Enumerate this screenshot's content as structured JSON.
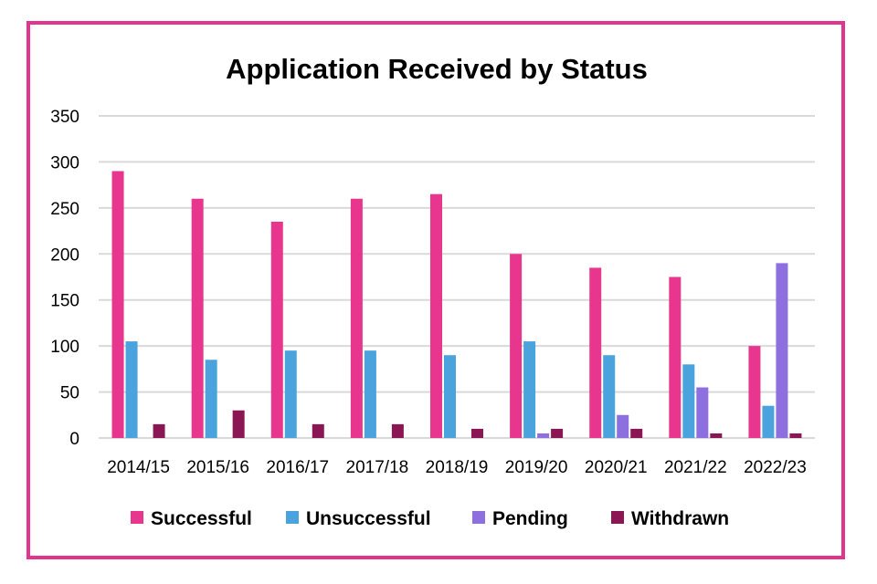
{
  "chart_data": {
    "type": "bar",
    "title": "Application Received by Status",
    "xlabel": "",
    "ylabel": "",
    "ylim": [
      0,
      350
    ],
    "yticks": [
      0,
      50,
      100,
      150,
      200,
      250,
      300,
      350
    ],
    "grid": true,
    "legend_position": "bottom",
    "categories": [
      "2014/15",
      "2015/16",
      "2016/17",
      "2017/18",
      "2018/19",
      "2019/20",
      "2020/21",
      "2021/22",
      "2022/23"
    ],
    "series": [
      {
        "name": "Successful",
        "color": "#e8368f",
        "values": [
          290,
          260,
          235,
          260,
          265,
          200,
          185,
          175,
          100
        ]
      },
      {
        "name": "Unsuccessful",
        "color": "#4ba3dd",
        "values": [
          105,
          85,
          95,
          95,
          90,
          105,
          90,
          80,
          35
        ]
      },
      {
        "name": "Pending",
        "color": "#8d6fe0",
        "values": [
          0,
          0,
          0,
          0,
          0,
          5,
          25,
          55,
          190
        ]
      },
      {
        "name": "Withdrawn",
        "color": "#8b1654",
        "values": [
          15,
          30,
          15,
          15,
          10,
          10,
          10,
          5,
          5
        ]
      }
    ]
  },
  "colors": {
    "border": "#e0348f",
    "grid": "#d9d9d9"
  }
}
